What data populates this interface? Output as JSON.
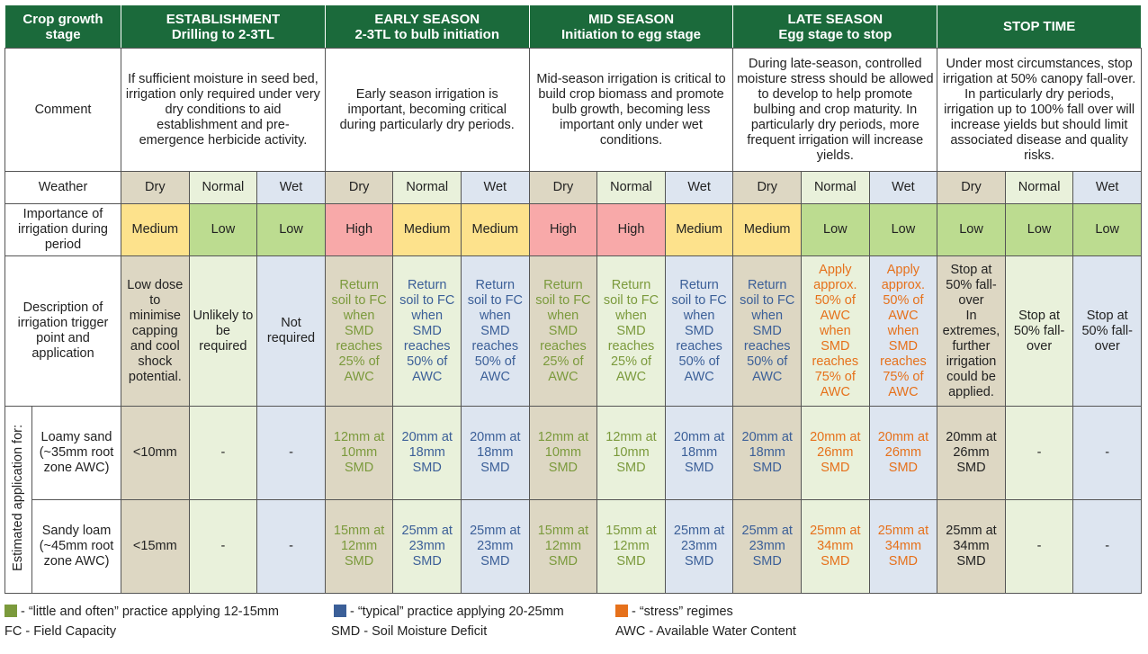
{
  "header": {
    "row_label": "Crop growth stage",
    "stages": [
      {
        "name": "ESTABLISHMENT",
        "subtitle": "Drilling to 2-3TL"
      },
      {
        "name": "EARLY SEASON",
        "subtitle": "2-3TL to bulb initiation"
      },
      {
        "name": "MID SEASON",
        "subtitle": "Initiation to egg stage"
      },
      {
        "name": "LATE SEASON",
        "subtitle": "Egg stage to stop"
      },
      {
        "name": "STOP TIME",
        "subtitle": ""
      }
    ]
  },
  "rows": {
    "comment": {
      "label": "Comment",
      "cells": [
        "If sufficient moisture in seed bed, irrigation only required under very dry conditions to aid establishment and pre-emergence herbicide activity.",
        "Early season irrigation is important, becoming critical during particularly dry periods.",
        "Mid-season irrigation is critical to build crop biomass and promote bulb growth, becoming less important only under wet conditions.",
        "During late-season, controlled moisture stress should be allowed to develop to help promote bulbing and crop maturity. In particularly dry periods, more frequent irrigation will increase yields.",
        "Under most circumstances, stop irrigation at 50% canopy fall-over. In particularly dry periods, irrigation up to 100% fall over will increase yields but should limit associated disease and quality risks."
      ]
    },
    "weather": {
      "label": "Weather",
      "cells": [
        "Dry",
        "Normal",
        "Wet",
        "Dry",
        "Normal",
        "Wet",
        "Dry",
        "Normal",
        "Wet",
        "Dry",
        "Normal",
        "Wet",
        "Dry",
        "Normal",
        "Wet"
      ]
    },
    "importance": {
      "label": "Importance of irrigation during period",
      "cells": [
        {
          "text": "Medium",
          "color": "#fde28c"
        },
        {
          "text": "Low",
          "color": "#bcdc90"
        },
        {
          "text": "Low",
          "color": "#bcdc90"
        },
        {
          "text": "High",
          "color": "#f8a9a9"
        },
        {
          "text": "Medium",
          "color": "#fde28c"
        },
        {
          "text": "Medium",
          "color": "#fde28c"
        },
        {
          "text": "High",
          "color": "#f8a9a9"
        },
        {
          "text": "High",
          "color": "#f8a9a9"
        },
        {
          "text": "Medium",
          "color": "#fde28c"
        },
        {
          "text": "Medium",
          "color": "#fde28c"
        },
        {
          "text": "Low",
          "color": "#bcdc90"
        },
        {
          "text": "Low",
          "color": "#bcdc90"
        },
        {
          "text": "Low",
          "color": "#bcdc90"
        },
        {
          "text": "Low",
          "color": "#bcdc90"
        },
        {
          "text": "Low",
          "color": "#bcdc90"
        }
      ]
    },
    "description": {
      "label": "Description of irrigation trigger point and application",
      "cells": [
        {
          "text": "Low dose to minimise capping and cool shock potential.",
          "color": "#222222"
        },
        {
          "text": "Unlikely to be required",
          "color": "#222222"
        },
        {
          "text": "Not required",
          "color": "#222222"
        },
        {
          "text": "Return soil to FC when SMD reaches 25% of AWC",
          "color": "#7b9a3c"
        },
        {
          "text": "Return soil to FC when SMD reaches 50% of AWC",
          "color": "#3b5f98"
        },
        {
          "text": "Return soil to FC when SMD reaches 50% of AWC",
          "color": "#3b5f98"
        },
        {
          "text": "Return soil to FC when SMD reaches 25% of AWC",
          "color": "#7b9a3c"
        },
        {
          "text": "Return soil to FC when SMD reaches 25% of AWC",
          "color": "#7b9a3c"
        },
        {
          "text": "Return soil to FC when SMD reaches 50% of AWC",
          "color": "#3b5f98"
        },
        {
          "text": "Return soil to FC when SMD reaches 50% of AWC",
          "color": "#3b5f98"
        },
        {
          "text": "Apply approx. 50% of AWC when SMD reaches 75% of AWC",
          "color": "#e6711b"
        },
        {
          "text": "Apply approx. 50% of AWC when SMD reaches 75% of AWC",
          "color": "#e6711b"
        },
        {
          "text": "Stop at 50% fall-over\nIn extremes, further irrigation could be applied.",
          "color": "#222222"
        },
        {
          "text": "Stop at 50% fall-over",
          "color": "#222222"
        },
        {
          "text": "Stop at 50% fall-over",
          "color": "#222222"
        }
      ]
    },
    "estimated": {
      "label": "Estimated application for:",
      "soils": [
        {
          "label": "Loamy sand (~35mm root zone AWC)",
          "cells": [
            {
              "text": "<10mm",
              "color": "#222222"
            },
            {
              "text": "-",
              "color": "#222222"
            },
            {
              "text": "-",
              "color": "#222222"
            },
            {
              "text": "12mm at 10mm SMD",
              "color": "#7b9a3c"
            },
            {
              "text": "20mm at 18mm SMD",
              "color": "#3b5f98"
            },
            {
              "text": "20mm at 18mm SMD",
              "color": "#3b5f98"
            },
            {
              "text": "12mm at 10mm SMD",
              "color": "#7b9a3c"
            },
            {
              "text": "12mm at 10mm SMD",
              "color": "#7b9a3c"
            },
            {
              "text": "20mm at 18mm SMD",
              "color": "#3b5f98"
            },
            {
              "text": "20mm at 18mm SMD",
              "color": "#3b5f98"
            },
            {
              "text": "20mm at 26mm SMD",
              "color": "#e6711b"
            },
            {
              "text": "20mm at 26mm SMD",
              "color": "#e6711b"
            },
            {
              "text": "20mm at 26mm SMD",
              "color": "#222222"
            },
            {
              "text": "-",
              "color": "#222222"
            },
            {
              "text": "-",
              "color": "#222222"
            }
          ]
        },
        {
          "label": "Sandy loam (~45mm root zone AWC)",
          "cells": [
            {
              "text": "<15mm",
              "color": "#222222"
            },
            {
              "text": "-",
              "color": "#222222"
            },
            {
              "text": "-",
              "color": "#222222"
            },
            {
              "text": "15mm at 12mm SMD",
              "color": "#7b9a3c"
            },
            {
              "text": "25mm at 23mm SMD",
              "color": "#3b5f98"
            },
            {
              "text": "25mm at 23mm SMD",
              "color": "#3b5f98"
            },
            {
              "text": "15mm at 12mm SMD",
              "color": "#7b9a3c"
            },
            {
              "text": "15mm at 12mm SMD",
              "color": "#7b9a3c"
            },
            {
              "text": "25mm at 23mm SMD",
              "color": "#3b5f98"
            },
            {
              "text": "25mm at 23mm SMD",
              "color": "#3b5f98"
            },
            {
              "text": "25mm at 34mm SMD",
              "color": "#e6711b"
            },
            {
              "text": "25mm at 34mm SMD",
              "color": "#e6711b"
            },
            {
              "text": "25mm at 34mm SMD",
              "color": "#222222"
            },
            {
              "text": "-",
              "color": "#222222"
            },
            {
              "text": "-",
              "color": "#222222"
            }
          ]
        }
      ]
    }
  },
  "legend": {
    "items": [
      {
        "color": "#7b9a3c",
        "text": "- “little and often” practice applying 12-15mm"
      },
      {
        "color": "#3b5f98",
        "text": "- “typical” practice applying 20-25mm"
      },
      {
        "color": "#e6711b",
        "text": "- “stress” regimes"
      }
    ],
    "abbreviations": [
      "FC - Field Capacity",
      "SMD - Soil Moisture Deficit",
      "AWC - Available Water Content"
    ]
  }
}
